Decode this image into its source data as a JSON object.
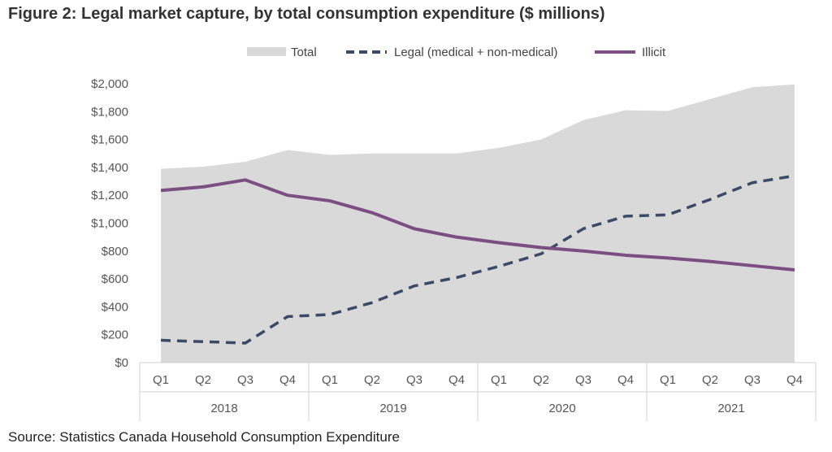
{
  "title": "Figure 2: Legal market capture, by total consumption expenditure ($ millions)",
  "source": "Source: Statistics Canada Household Consumption Expenditure",
  "chart_data": {
    "type": "line",
    "categories": [
      "Q1",
      "Q2",
      "Q3",
      "Q4",
      "Q1",
      "Q2",
      "Q3",
      "Q4",
      "Q1",
      "Q2",
      "Q3",
      "Q4",
      "Q1",
      "Q2",
      "Q3",
      "Q4"
    ],
    "years": [
      "2018",
      "2019",
      "2020",
      "2021"
    ],
    "ylim": [
      0,
      2000
    ],
    "yticks": [
      "$0",
      "$200",
      "$400",
      "$600",
      "$800",
      "$1,000",
      "$1,200",
      "$1,400",
      "$1,600",
      "$1,800",
      "$2,000"
    ],
    "series": [
      {
        "name": "Total",
        "style": "area",
        "color": "#d9d9d9",
        "values": [
          1390,
          1405,
          1440,
          1525,
          1490,
          1500,
          1500,
          1500,
          1540,
          1600,
          1740,
          1810,
          1805,
          1890,
          1975,
          1995
        ]
      },
      {
        "name": "Legal (medical + non-medical)",
        "style": "dashed",
        "color": "#3b4a66",
        "values": [
          160,
          150,
          140,
          330,
          345,
          430,
          550,
          610,
          690,
          780,
          960,
          1050,
          1060,
          1170,
          1290,
          1340
        ]
      },
      {
        "name": "Illicit",
        "style": "solid",
        "color": "#7b4f82",
        "values": [
          1235,
          1260,
          1310,
          1200,
          1160,
          1075,
          960,
          900,
          860,
          825,
          800,
          770,
          750,
          725,
          695,
          665
        ]
      }
    ]
  }
}
